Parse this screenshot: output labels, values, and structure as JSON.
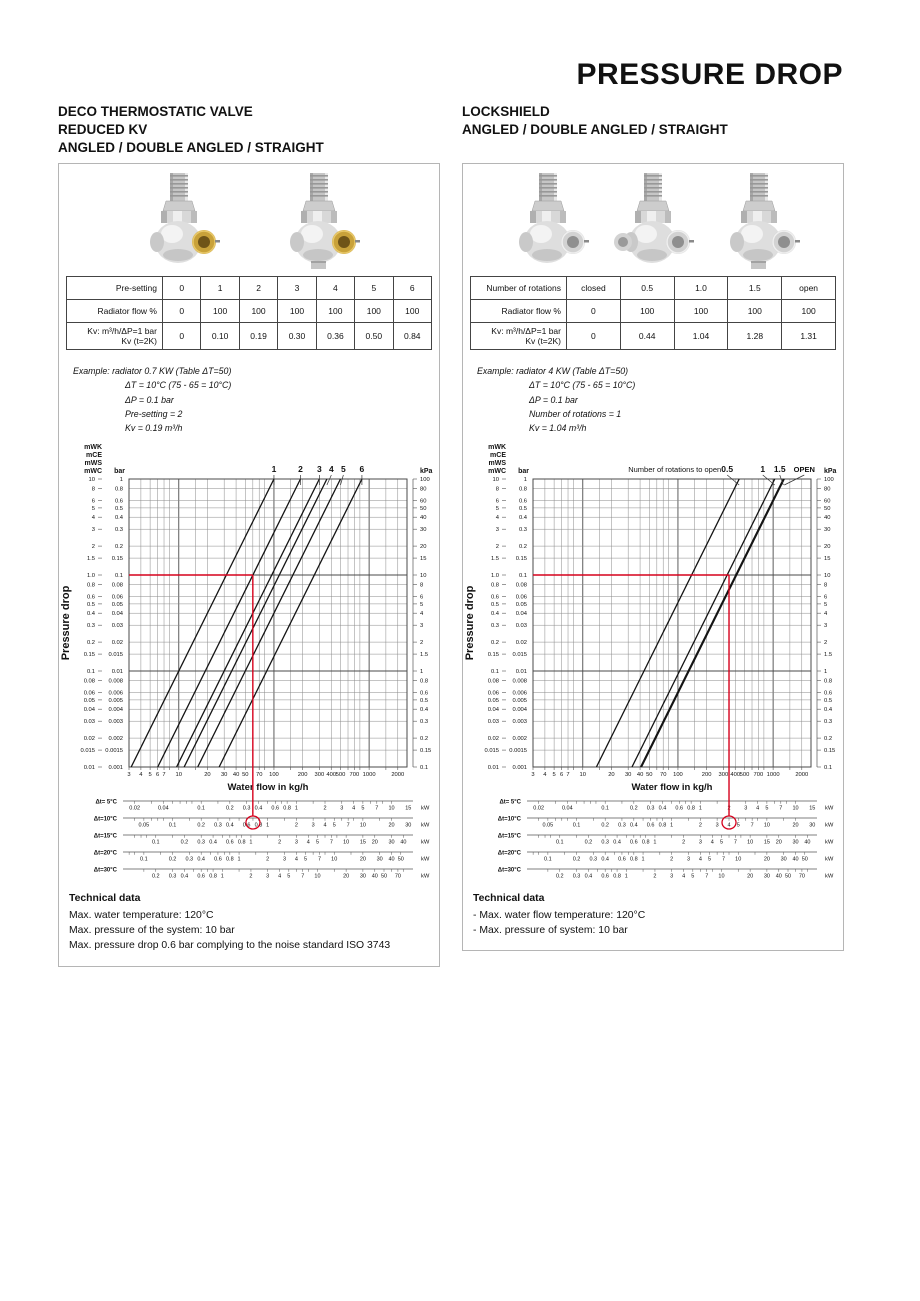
{
  "page": {
    "title": "PRESSURE DROP"
  },
  "colors": {
    "marker_red": "#d6001c",
    "grid_minor": "#8a8a8a",
    "grid_major": "#4a4a4a",
    "curve_black": "#141414",
    "table_border": "#444444",
    "panel_border": "#b5b5b5",
    "brass": "#c9a23a",
    "chrome": "#d2d2d2"
  },
  "panels": [
    {
      "heading_lines": [
        "DECO THERMOSTATIC VALVE",
        "REDUCED KV",
        "ANGLED / DOUBLE ANGLED / STRAIGHT"
      ],
      "valves": [
        {
          "type": "angled",
          "insert": "brass"
        },
        {
          "type": "straight",
          "insert": "brass"
        }
      ],
      "table": {
        "rows": [
          {
            "label_lines": [
              "Pre-setting"
            ],
            "values": [
              "0",
              "1",
              "2",
              "3",
              "4",
              "5",
              "6"
            ]
          },
          {
            "label_lines": [
              "Radiator flow %"
            ],
            "values": [
              "0",
              "100",
              "100",
              "100",
              "100",
              "100",
              "100"
            ]
          },
          {
            "label_lines": [
              "Kv: m³/h/ΔP=1 bar",
              "Kv (t=2K)"
            ],
            "values": [
              "0",
              "0.10",
              "0.19",
              "0.30",
              "0.36",
              "0.50",
              "0.84"
            ]
          }
        ]
      },
      "example": {
        "prefix": "Example:",
        "lines": [
          "radiator 0.7 KW (Table ΔT=50)",
          "ΔT = 10°C (75 - 65 = 10°C)",
          "ΔP = 0.1 bar",
          "Pre-setting = 2",
          "Kv = 0.19 m³/h"
        ]
      },
      "technical_data": {
        "title": "Technical data",
        "lines": [
          "Max. water temperature: 120°C",
          "Max. pressure of the system: 10 bar",
          "Max. pressure drop 0.6 bar complying to the noise standard ISO 3743"
        ]
      }
    },
    {
      "heading_lines": [
        "LOCKSHIELD",
        "ANGLED / DOUBLE ANGLED / STRAIGHT"
      ],
      "valves": [
        {
          "type": "angled",
          "insert": "chrome"
        },
        {
          "type": "double-angled",
          "insert": "chrome"
        },
        {
          "type": "straight",
          "insert": "chrome"
        }
      ],
      "table": {
        "rows": [
          {
            "label_lines": [
              "Number of rotations"
            ],
            "values": [
              "closed",
              "0.5",
              "1.0",
              "1.5",
              "open"
            ]
          },
          {
            "label_lines": [
              "Radiator flow %"
            ],
            "values": [
              "0",
              "100",
              "100",
              "100",
              "100"
            ]
          },
          {
            "label_lines": [
              "Kv: m³/h/ΔP=1 bar",
              "Kv (t=2K)"
            ],
            "values": [
              "0",
              "0.44",
              "1.04",
              "1.28",
              "1.31"
            ]
          }
        ]
      },
      "example": {
        "prefix": "Example:",
        "lines": [
          "radiator 4 KW (Table ΔT=50)",
          "ΔT = 10°C (75 - 65 = 10°C)",
          "ΔP = 0.1 bar",
          "Number of rotations = 1",
          "Kv = 1.04 m³/h"
        ]
      },
      "technical_data": {
        "title": "Technical data",
        "lines": [
          "- Max. water flow temperature: 120°C",
          "- Max. pressure of system: 10 bar"
        ]
      }
    }
  ],
  "chart_data": [
    {
      "type": "line",
      "panel": "DECO THERMOSTATIC VALVE REDUCED KV",
      "x_scale": "log",
      "y_scale": "log",
      "xlabel": "Water flow in kg/h",
      "ylabel": "Pressure drop",
      "x_range_kgh": [
        3,
        2500
      ],
      "y_range_bar": [
        0.001,
        1
      ],
      "y_unit_headers": {
        "stack": [
          "mWK",
          "mCE",
          "mWS",
          "mWC"
        ],
        "inner": "bar",
        "right": "kPa"
      },
      "x_tick_labels": [
        "3",
        "4",
        "5",
        "6",
        "7",
        "10",
        "20",
        "30",
        "40",
        "50",
        "70",
        "100",
        "200",
        "300",
        "400",
        "500",
        "700",
        "1000",
        "2000"
      ],
      "mwc_tick_labels": [
        "10",
        "8",
        "6",
        "5",
        "4",
        "3",
        "2",
        "1.5",
        "1.0",
        "0.8",
        "0.6",
        "0.5",
        "0.4",
        "0.3",
        "0.2",
        "0.15",
        "0.1",
        "0.08",
        "0.06",
        "0.05",
        "0.04",
        "0.03",
        "0.02",
        "0.015",
        "0.01"
      ],
      "bar_tick_labels": [
        "1",
        "0.8",
        "0.6",
        "0.5",
        "0.4",
        "0.3",
        "0.2",
        "0.15",
        "0.1",
        "0.08",
        "0.06",
        "0.05",
        "0.04",
        "0.03",
        "0.02",
        "0.015",
        "0.01",
        "0.008",
        "0.006",
        "0.005",
        "0.004",
        "0.003",
        "0.002",
        "0.0015",
        "0.001"
      ],
      "kpa_tick_labels": [
        "100",
        "80",
        "60",
        "50",
        "40",
        "30",
        "20",
        "15",
        "10",
        "8",
        "6",
        "5",
        "4",
        "3",
        "2",
        "1.5",
        "1",
        "0.8",
        "0.6",
        "0.5",
        "0.4",
        "0.3",
        "0.2",
        "0.15",
        "0.1"
      ],
      "grid": {
        "x_minor_multipliers": [
          1,
          1.5,
          2,
          3,
          4,
          5,
          6,
          7,
          8
        ],
        "y_minor_multipliers": [
          1,
          0.8,
          0.6,
          0.5,
          0.4,
          0.3,
          0.2,
          0.15
        ]
      },
      "curve_model": "dp_bar = (flow_kgh / (1000 * kv))^2",
      "title_above_curves": "",
      "curves": [
        {
          "label": "1",
          "kv": 0.1
        },
        {
          "label": "2",
          "kv": 0.19
        },
        {
          "label": "3",
          "kv": 0.3
        },
        {
          "label": "4",
          "kv": 0.36
        },
        {
          "label": "5",
          "kv": 0.5
        },
        {
          "label": "6",
          "kv": 0.84
        }
      ],
      "red_marker": {
        "pressure_bar": 0.1,
        "flow_kgh": 60,
        "kw_scale_dt_c": 10,
        "kw_value": 0.7
      },
      "kw_scales": [
        {
          "label": "Δt= 5°C",
          "dt_c": 5,
          "unit": "kW",
          "tick_labels": [
            "0.02",
            "0.04",
            "0.1",
            "0.2",
            "0.3",
            "0.4",
            "0.6",
            "0.8",
            "1",
            "2",
            "3",
            "4",
            "5",
            "7",
            "10",
            "15"
          ]
        },
        {
          "label": "Δt=10°C",
          "dt_c": 10,
          "unit": "kW",
          "tick_labels": [
            "0.05",
            "0.1",
            "0.2",
            "0.3",
            "0.4",
            "0.6",
            "0.8",
            "1",
            "2",
            "3",
            "4",
            "5",
            "7",
            "10",
            "20",
            "30"
          ]
        },
        {
          "label": "Δt=15°C",
          "dt_c": 15,
          "unit": "kW",
          "tick_labels": [
            "0.1",
            "0.2",
            "0.3",
            "0.4",
            "0.6",
            "0.8",
            "1",
            "2",
            "3",
            "4",
            "5",
            "7",
            "10",
            "15",
            "20",
            "30",
            "40"
          ]
        },
        {
          "label": "Δt=20°C",
          "dt_c": 20,
          "unit": "kW",
          "tick_labels": [
            "0.1",
            "0.2",
            "0.3",
            "0.4",
            "0.6",
            "0.8",
            "1",
            "2",
            "3",
            "4",
            "5",
            "7",
            "10",
            "20",
            "30",
            "40",
            "50"
          ]
        },
        {
          "label": "Δt=30°C",
          "dt_c": 30,
          "unit": "kW",
          "tick_labels": [
            "0.2",
            "0.3",
            "0.4",
            "0.6",
            "0.8",
            "1",
            "2",
            "3",
            "4",
            "5",
            "7",
            "10",
            "20",
            "30",
            "40",
            "50",
            "70"
          ]
        }
      ]
    },
    {
      "type": "line",
      "panel": "LOCKSHIELD",
      "x_scale": "log",
      "y_scale": "log",
      "xlabel": "Water flow in kg/h",
      "ylabel": "Pressure drop",
      "x_range_kgh": [
        3,
        2500
      ],
      "y_range_bar": [
        0.001,
        1
      ],
      "y_unit_headers": {
        "stack": [
          "mWK",
          "mCE",
          "mWS",
          "mWC"
        ],
        "inner": "bar",
        "right": "kPa"
      },
      "x_tick_labels": [
        "3",
        "4",
        "5",
        "6",
        "7",
        "10",
        "20",
        "30",
        "40",
        "50",
        "70",
        "100",
        "200",
        "300",
        "400",
        "500",
        "700",
        "1000",
        "2000"
      ],
      "mwc_tick_labels": [
        "10",
        "8",
        "6",
        "5",
        "4",
        "3",
        "2",
        "1.5",
        "1.0",
        "0.8",
        "0.6",
        "0.5",
        "0.4",
        "0.3",
        "0.2",
        "0.15",
        "0.1",
        "0.08",
        "0.06",
        "0.05",
        "0.04",
        "0.03",
        "0.02",
        "0.015",
        "0.01"
      ],
      "bar_tick_labels": [
        "1",
        "0.8",
        "0.6",
        "0.5",
        "0.4",
        "0.3",
        "0.2",
        "0.15",
        "0.1",
        "0.08",
        "0.06",
        "0.05",
        "0.04",
        "0.03",
        "0.02",
        "0.015",
        "0.01",
        "0.008",
        "0.006",
        "0.005",
        "0.004",
        "0.003",
        "0.002",
        "0.0015",
        "0.001"
      ],
      "kpa_tick_labels": [
        "100",
        "80",
        "60",
        "50",
        "40",
        "30",
        "20",
        "15",
        "10",
        "8",
        "6",
        "5",
        "4",
        "3",
        "2",
        "1.5",
        "1",
        "0.8",
        "0.6",
        "0.5",
        "0.4",
        "0.3",
        "0.2",
        "0.15",
        "0.1"
      ],
      "grid": {
        "x_minor_multipliers": [
          1,
          1.5,
          2,
          3,
          4,
          5,
          6,
          7,
          8
        ],
        "y_minor_multipliers": [
          1,
          0.8,
          0.6,
          0.5,
          0.4,
          0.3,
          0.2,
          0.15
        ]
      },
      "curve_model": "dp_bar = (flow_kgh / (1000 * kv))^2",
      "title_above_curves": "Number of rotations to open",
      "curves": [
        {
          "label": "0.5",
          "kv": 0.44
        },
        {
          "label": "1",
          "kv": 1.04
        },
        {
          "label": "1.5",
          "kv": 1.28
        },
        {
          "label": "OPEN",
          "kv": 1.31
        }
      ],
      "red_marker": {
        "pressure_bar": 0.1,
        "flow_kgh": 344,
        "kw_scale_dt_c": 10,
        "kw_value": 4
      },
      "kw_scales": [
        {
          "label": "Δt= 5°C",
          "dt_c": 5,
          "unit": "kW",
          "tick_labels": [
            "0.02",
            "0.04",
            "0.1",
            "0.2",
            "0.3",
            "0.4",
            "0.6",
            "0.8",
            "1",
            "2",
            "3",
            "4",
            "5",
            "7",
            "10",
            "15"
          ]
        },
        {
          "label": "Δt=10°C",
          "dt_c": 10,
          "unit": "kW",
          "tick_labels": [
            "0.05",
            "0.1",
            "0.2",
            "0.3",
            "0.4",
            "0.6",
            "0.8",
            "1",
            "2",
            "3",
            "4",
            "5",
            "7",
            "10",
            "20",
            "30"
          ]
        },
        {
          "label": "Δt=15°C",
          "dt_c": 15,
          "unit": "kW",
          "tick_labels": [
            "0.1",
            "0.2",
            "0.3",
            "0.4",
            "0.6",
            "0.8",
            "1",
            "2",
            "3",
            "4",
            "5",
            "7",
            "10",
            "15",
            "20",
            "30",
            "40"
          ]
        },
        {
          "label": "Δt=20°C",
          "dt_c": 20,
          "unit": "kW",
          "tick_labels": [
            "0.1",
            "0.2",
            "0.3",
            "0.4",
            "0.6",
            "0.8",
            "1",
            "2",
            "3",
            "4",
            "5",
            "7",
            "10",
            "20",
            "30",
            "40",
            "50"
          ]
        },
        {
          "label": "Δt=30°C",
          "dt_c": 30,
          "unit": "kW",
          "tick_labels": [
            "0.2",
            "0.3",
            "0.4",
            "0.6",
            "0.8",
            "1",
            "2",
            "3",
            "4",
            "5",
            "7",
            "10",
            "20",
            "30",
            "40",
            "50",
            "70"
          ]
        }
      ]
    }
  ]
}
